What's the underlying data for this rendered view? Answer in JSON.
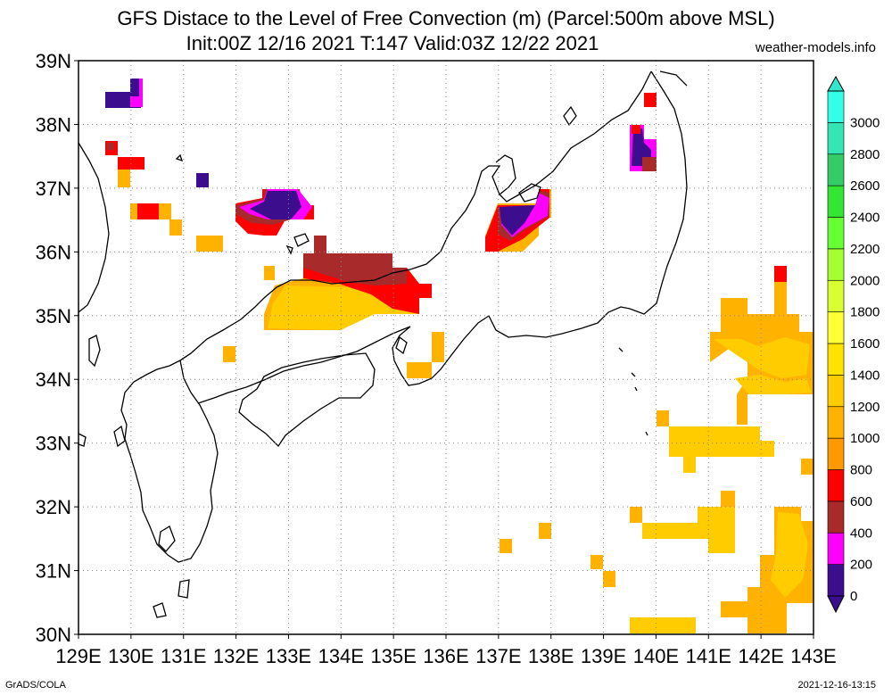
{
  "title_line1": "GFS Distace to the Level of Free Convection (m) (Parcel:500m above MSL)",
  "title_line2": "Init:00Z 12/16 2021 T:147 Valid:03Z 12/22 2021",
  "credit": "weather-models.info",
  "footer_left": "GrADS/COLA",
  "footer_right": "2021-12-16-13:15",
  "lon_labels": [
    "129E",
    "130E",
    "131E",
    "132E",
    "133E",
    "134E",
    "135E",
    "136E",
    "137E",
    "138E",
    "139E",
    "140E",
    "141E",
    "142E",
    "143E"
  ],
  "lat_labels": [
    "30N",
    "31N",
    "32N",
    "33N",
    "34N",
    "35N",
    "36N",
    "37N",
    "38N",
    "39N"
  ],
  "colorbar": {
    "labels": [
      "0",
      "200",
      "400",
      "600",
      "800",
      "1000",
      "1200",
      "1400",
      "1600",
      "1800",
      "2000",
      "2200",
      "2400",
      "2600",
      "2800",
      "3000"
    ],
    "colors": [
      "#3c0d8c",
      "#ff00ff",
      "#a82a2a",
      "#ff0000",
      "#ff9900",
      "#ffb300",
      "#ffcc00",
      "#ffe300",
      "#ffff33",
      "#d9ff33",
      "#a6ff33",
      "#66ff33",
      "#33e633",
      "#33cc66",
      "#33e6b3",
      "#33ffe6"
    ],
    "under_color": "#3c0d8c",
    "over_color": "#33e6cc"
  },
  "map": {
    "lon_range": [
      129,
      143
    ],
    "lat_range": [
      30,
      39
    ],
    "grid": true
  }
}
